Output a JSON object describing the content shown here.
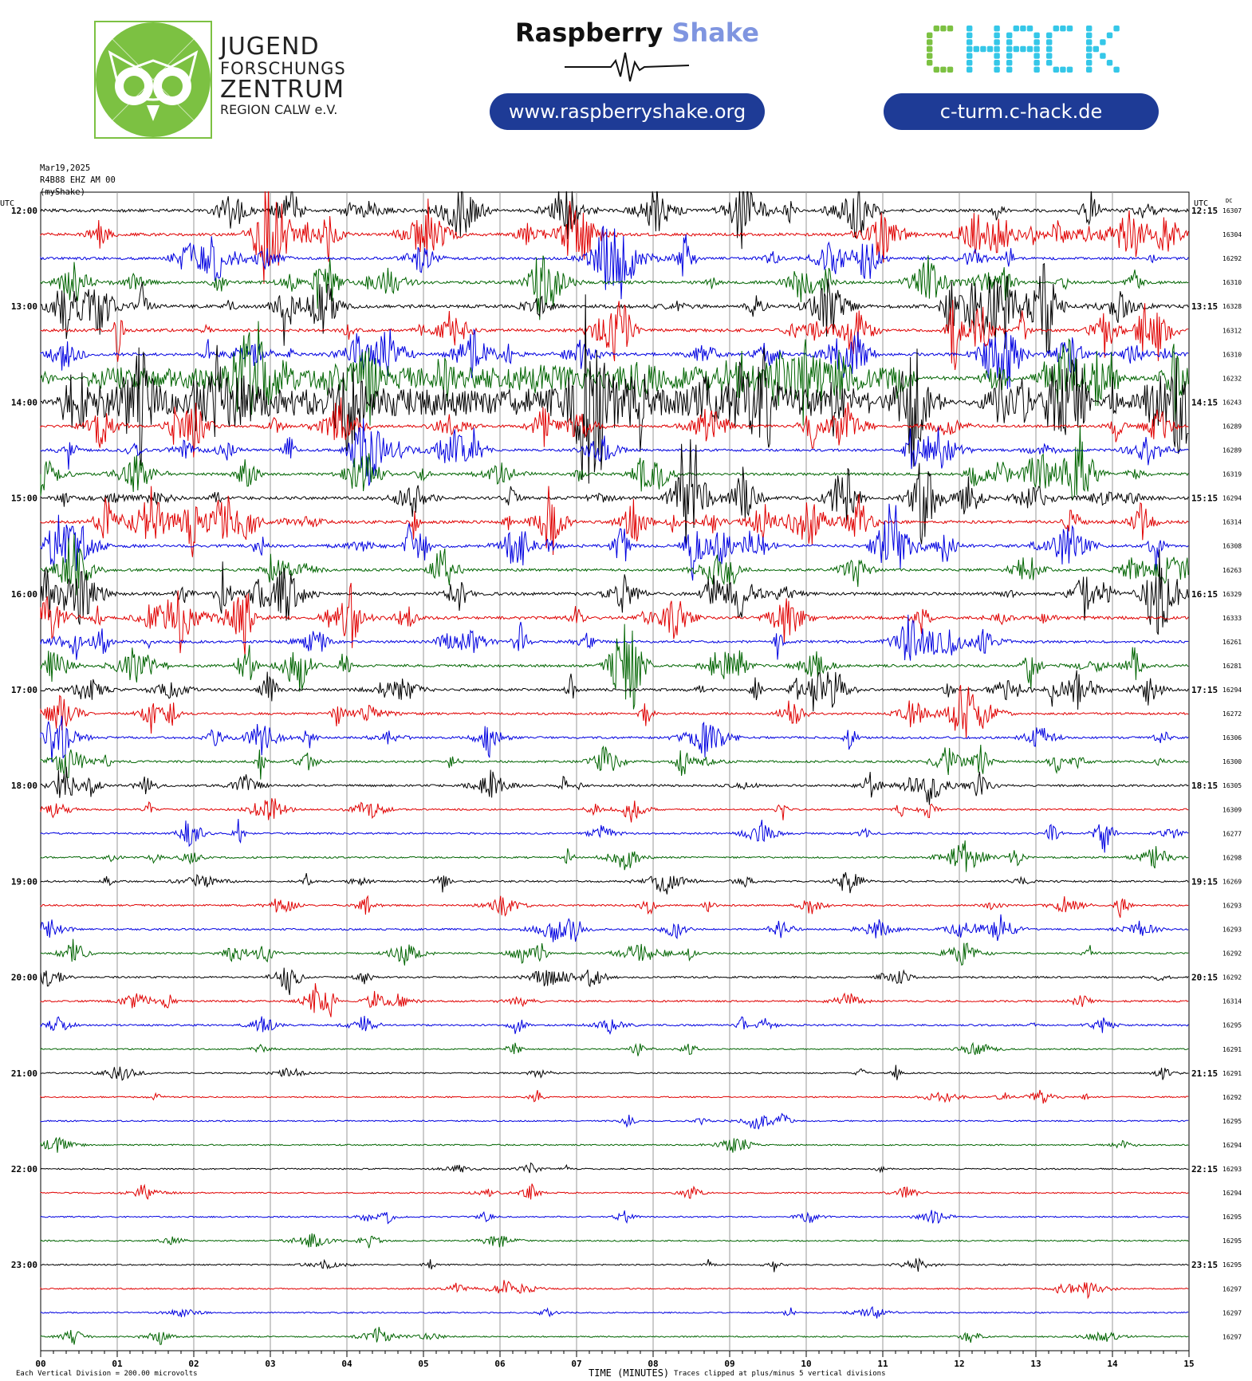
{
  "header": {
    "jfz": {
      "line1": "JUGEND",
      "line2": "FORSCHUNGS",
      "line3": "ZENTRUM",
      "line4": "REGION CALW e.V."
    },
    "raspberry": {
      "word1": "Raspberry",
      "word2": "Shake",
      "url": "www.raspberryshake.org"
    },
    "chack": {
      "logo_text": "CHACK",
      "url": "c-turm.c-hack.de"
    }
  },
  "meta": {
    "date": "Mar19,2025",
    "station": "R4B88 EHZ AM 00",
    "source": "(myShake)"
  },
  "chart_data": {
    "type": "helicorder",
    "left_utc_label": "UTC",
    "right_utc_label": "UTC",
    "dc_label": "DC",
    "left_hours": [
      "12:00",
      "13:00",
      "14:00",
      "15:00",
      "16:00",
      "17:00",
      "18:00",
      "19:00",
      "20:00",
      "21:00",
      "22:00",
      "23:00"
    ],
    "right_hours": [
      "12:15",
      "13:15",
      "14:15",
      "15:15",
      "16:15",
      "17:15",
      "18:15",
      "19:15",
      "20:15",
      "21:15",
      "22:15",
      "23:15"
    ],
    "trace_colors": [
      "#000000",
      "#e00000",
      "#0000e0",
      "#006400"
    ],
    "dc_values": [
      "16307",
      "16304",
      "16292",
      "16310",
      "16328",
      "16312",
      "16310",
      "16232",
      "16243",
      "16289",
      "16289",
      "16319",
      "16294",
      "16314",
      "16308",
      "16263",
      "16329",
      "16333",
      "16261",
      "16281",
      "16294",
      "16272",
      "16306",
      "16300",
      "16305",
      "16309",
      "16277",
      "16298",
      "16269",
      "16293",
      "16293",
      "16292",
      "16292",
      "16314",
      "16295",
      "16291",
      "16291",
      "16292",
      "16295",
      "16294",
      "16293",
      "16294",
      "16295",
      "16295",
      "16295",
      "16297",
      "16297",
      "16297"
    ],
    "activity": [
      5,
      5,
      4,
      5,
      6,
      5,
      5,
      7,
      9,
      4,
      4,
      4,
      5,
      5,
      5,
      4,
      5,
      5,
      4,
      4,
      4,
      3,
      3,
      3,
      3,
      2,
      2,
      2,
      2,
      2,
      2,
      2,
      2,
      2,
      2,
      1,
      1,
      1,
      1,
      1,
      1,
      1,
      1,
      1,
      1,
      1,
      1,
      1
    ],
    "x_ticks": [
      "00",
      "01",
      "02",
      "03",
      "04",
      "05",
      "06",
      "07",
      "08",
      "09",
      "10",
      "11",
      "12",
      "13",
      "14",
      "15"
    ],
    "xlabel": "TIME (MINUTES)",
    "vertical_division_note": "Each Vertical Division = 200.00 microvolts",
    "clip_note": "Traces clipped at plus/minus 5 vertical divisions"
  }
}
